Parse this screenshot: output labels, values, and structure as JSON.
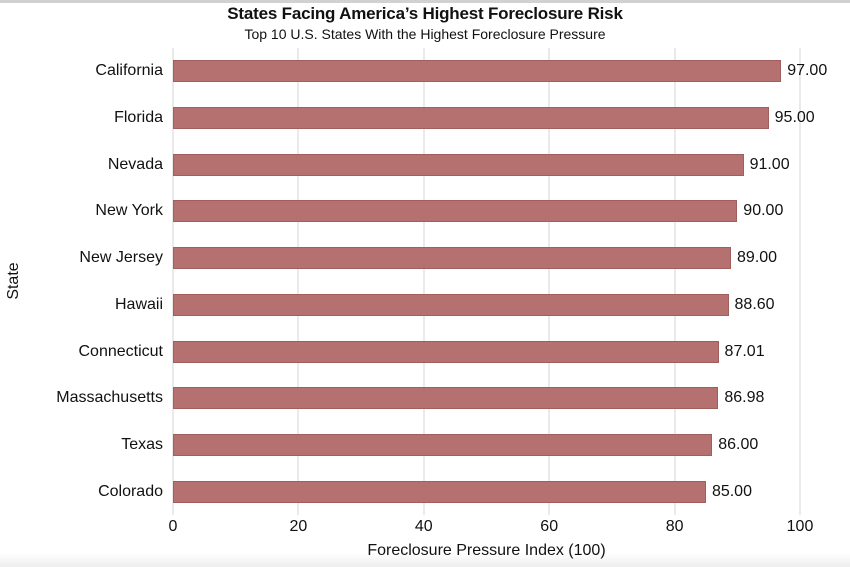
{
  "chart_data": {
    "type": "bar",
    "orientation": "horizontal",
    "title": "States Facing America’s Highest Foreclosure Risk",
    "subtitle": "Top 10 U.S. States With the Highest Foreclosure Pressure",
    "xlabel": "Foreclosure Pressure Index (100)",
    "ylabel": "State",
    "categories": [
      "California",
      "Florida",
      "Nevada",
      "New York",
      "New Jersey",
      "Hawaii",
      "Connecticut",
      "Massachusetts",
      "Texas",
      "Colorado"
    ],
    "values": [
      97.0,
      95.0,
      91.0,
      90.0,
      89.0,
      88.6,
      87.01,
      86.98,
      86.0,
      85.0
    ],
    "value_labels": [
      "97.00",
      "95.00",
      "91.00",
      "90.00",
      "89.00",
      "88.60",
      "87.01",
      "86.98",
      "86.00",
      "85.00"
    ],
    "xlim": [
      0,
      100
    ],
    "xticks": [
      0,
      20,
      40,
      60,
      80,
      100
    ],
    "grid": "vertical",
    "legend": "none",
    "colors": {
      "bar_fill": "#b47170",
      "bar_edge": "#a05e5d",
      "gridline": "#d4d4d4",
      "text": "#111111"
    }
  }
}
